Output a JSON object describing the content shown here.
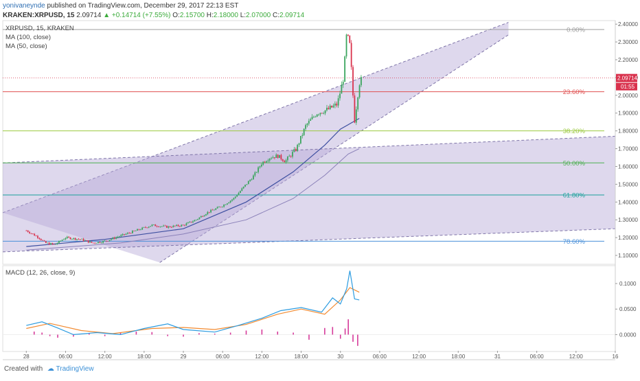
{
  "header": {
    "author": "yonivaneynde",
    "published": "published on TradingView.com, December 29, 2017 22:13 EST",
    "symbol": "KRAKEN:XRPUSD, 15",
    "last": "2.09714",
    "change": "▲ +0.14714 (+7.55%)",
    "open_label": "O:",
    "open": "2.15700",
    "high_label": "H:",
    "high": "2.18000",
    "low_label": "L:",
    "low": "2.07000",
    "close_label": "C:",
    "close": "2.09714"
  },
  "main_pane": {
    "legend": [
      "XRPUSD, 15, KRAKEN",
      "MA (100, close)",
      "MA (50, close)"
    ],
    "price_label": "2.09714",
    "countdown": "01:55"
  },
  "macd_pane": {
    "legend": "MACD (12, 26, close, 9)"
  },
  "footer": {
    "created_with": "Created with",
    "brand": "TradingView"
  },
  "colors": {
    "up": "#3aa55d",
    "down": "#d9324d",
    "ma100": "#8a80b8",
    "ma50": "#3d4fa0",
    "channel": "#b6a9d8",
    "macd": "#2b9be0",
    "signal": "#f28a30",
    "hist": "#d63a9a",
    "fib0": "#9e9e9e",
    "fib236": "#e05050",
    "fib382": "#9bc93f",
    "fib50": "#4caf50",
    "fib618": "#1aa19b",
    "fib786": "#4a90d9"
  },
  "chart_data": [
    {
      "type": "candlestick",
      "title": "XRPUSD, 15, KRAKEN",
      "x_ticks": [
        "28",
        "06:00",
        "12:00",
        "18:00",
        "29",
        "06:00",
        "12:00",
        "18:00",
        "30",
        "06:00",
        "12:00",
        "18:00",
        "31",
        "06:00",
        "12:00",
        "16"
      ],
      "y_ticks": [
        "2.40000",
        "2.30000",
        "2.20000",
        "2.10000",
        "2.00000",
        "1.90000",
        "1.80000",
        "1.70000",
        "1.60000",
        "1.50000",
        "1.40000",
        "1.30000",
        "1.20000",
        "1.10000"
      ],
      "ylim": [
        1.05,
        2.42
      ],
      "xlim": [
        -0.15,
        3.75
      ],
      "price_path": [
        [
          0.0,
          1.24
        ],
        [
          0.08,
          1.2
        ],
        [
          0.12,
          1.17
        ],
        [
          0.18,
          1.16
        ],
        [
          0.25,
          1.2
        ],
        [
          0.35,
          1.19
        ],
        [
          0.42,
          1.17
        ],
        [
          0.5,
          1.18
        ],
        [
          0.6,
          1.21
        ],
        [
          0.7,
          1.24
        ],
        [
          0.8,
          1.27
        ],
        [
          0.9,
          1.26
        ],
        [
          1.0,
          1.27
        ],
        [
          1.08,
          1.3
        ],
        [
          1.15,
          1.34
        ],
        [
          1.25,
          1.38
        ],
        [
          1.32,
          1.42
        ],
        [
          1.38,
          1.48
        ],
        [
          1.45,
          1.55
        ],
        [
          1.5,
          1.62
        ],
        [
          1.55,
          1.65
        ],
        [
          1.6,
          1.66
        ],
        [
          1.65,
          1.63
        ],
        [
          1.72,
          1.7
        ],
        [
          1.78,
          1.83
        ],
        [
          1.85,
          1.9
        ],
        [
          1.92,
          1.92
        ],
        [
          1.98,
          1.95
        ],
        [
          2.02,
          2.1
        ],
        [
          2.04,
          2.35
        ],
        [
          2.06,
          2.28
        ],
        [
          2.09,
          1.86
        ],
        [
          2.12,
          2.07
        ],
        [
          2.14,
          2.097
        ]
      ],
      "ma100": [
        [
          0.0,
          1.13
        ],
        [
          0.6,
          1.17
        ],
        [
          1.0,
          1.22
        ],
        [
          1.4,
          1.3
        ],
        [
          1.7,
          1.42
        ],
        [
          1.9,
          1.55
        ],
        [
          2.05,
          1.67
        ],
        [
          2.12,
          1.7
        ]
      ],
      "ma50": [
        [
          0.0,
          1.15
        ],
        [
          0.5,
          1.19
        ],
        [
          1.0,
          1.25
        ],
        [
          1.4,
          1.4
        ],
        [
          1.7,
          1.57
        ],
        [
          1.9,
          1.72
        ],
        [
          2.0,
          1.81
        ],
        [
          2.12,
          1.87
        ]
      ],
      "channels": [
        {
          "name": "upper",
          "top": [
            [
              -0.15,
              1.34
            ],
            [
              3.07,
              2.41
            ]
          ],
          "bottom": [
            [
              0.85,
              1.06
            ],
            [
              3.07,
              2.34
            ]
          ]
        },
        {
          "name": "lower",
          "top": [
            [
              -0.15,
              1.62
            ],
            [
              3.75,
              1.77
            ]
          ],
          "bottom": [
            [
              -0.15,
              1.12
            ],
            [
              3.75,
              1.25
            ]
          ]
        }
      ],
      "fibonacci": [
        {
          "label": "0.00%",
          "value": 2.37
        },
        {
          "label": "23.60%",
          "value": 2.02
        },
        {
          "label": "38.20%",
          "value": 1.8
        },
        {
          "label": "50.00%",
          "value": 1.62
        },
        {
          "label": "61.80%",
          "value": 1.44
        },
        {
          "label": "78.60%",
          "value": 1.18
        }
      ],
      "last_price": 2.09714
    },
    {
      "type": "line",
      "title": "MACD (12, 26, close, 9)",
      "y_ticks": [
        "0.1000",
        "0.0500",
        "0.0000"
      ],
      "ylim": [
        -0.033,
        0.135
      ],
      "series": [
        {
          "values": [
            [
              0.0,
              0.018
            ],
            [
              0.1,
              0.025
            ],
            [
              0.2,
              0.013
            ],
            [
              0.3,
              0.0
            ],
            [
              0.45,
              0.004
            ],
            [
              0.6,
              0.0
            ],
            [
              0.75,
              0.012
            ],
            [
              0.9,
              0.021
            ],
            [
              1.0,
              0.01
            ],
            [
              1.2,
              0.005
            ],
            [
              1.35,
              0.018
            ],
            [
              1.5,
              0.032
            ],
            [
              1.62,
              0.047
            ],
            [
              1.75,
              0.053
            ],
            [
              1.88,
              0.044
            ],
            [
              1.95,
              0.072
            ],
            [
              2.0,
              0.06
            ],
            [
              2.04,
              0.09
            ],
            [
              2.06,
              0.125
            ],
            [
              2.09,
              0.07
            ],
            [
              2.12,
              0.068
            ]
          ]
        },
        {
          "values": [
            [
              0.0,
              0.012
            ],
            [
              0.15,
              0.022
            ],
            [
              0.35,
              0.008
            ],
            [
              0.55,
              0.002
            ],
            [
              0.8,
              0.012
            ],
            [
              1.0,
              0.014
            ],
            [
              1.2,
              0.01
            ],
            [
              1.4,
              0.02
            ],
            [
              1.6,
              0.04
            ],
            [
              1.75,
              0.05
            ],
            [
              1.9,
              0.04
            ],
            [
              2.0,
              0.068
            ],
            [
              2.06,
              0.092
            ],
            [
              2.12,
              0.083
            ]
          ]
        }
      ],
      "histogram": [
        [
          0.05,
          0.006
        ],
        [
          0.1,
          0.004
        ],
        [
          0.15,
          -0.003
        ],
        [
          0.2,
          -0.006
        ],
        [
          0.3,
          -0.004
        ],
        [
          0.4,
          0.002
        ],
        [
          0.5,
          -0.003
        ],
        [
          0.6,
          0.004
        ],
        [
          0.7,
          0.006
        ],
        [
          0.8,
          0.005
        ],
        [
          0.9,
          -0.003
        ],
        [
          1.0,
          -0.004
        ],
        [
          1.1,
          0.003
        ],
        [
          1.2,
          0.002
        ],
        [
          1.3,
          0.004
        ],
        [
          1.4,
          0.008
        ],
        [
          1.5,
          0.01
        ],
        [
          1.6,
          0.006
        ],
        [
          1.7,
          0.004
        ],
        [
          1.8,
          -0.01
        ],
        [
          1.9,
          0.013
        ],
        [
          1.95,
          0.015
        ],
        [
          2.0,
          -0.008
        ],
        [
          2.03,
          0.012
        ],
        [
          2.05,
          0.03
        ],
        [
          2.08,
          -0.014
        ],
        [
          2.11,
          -0.022
        ]
      ]
    }
  ]
}
